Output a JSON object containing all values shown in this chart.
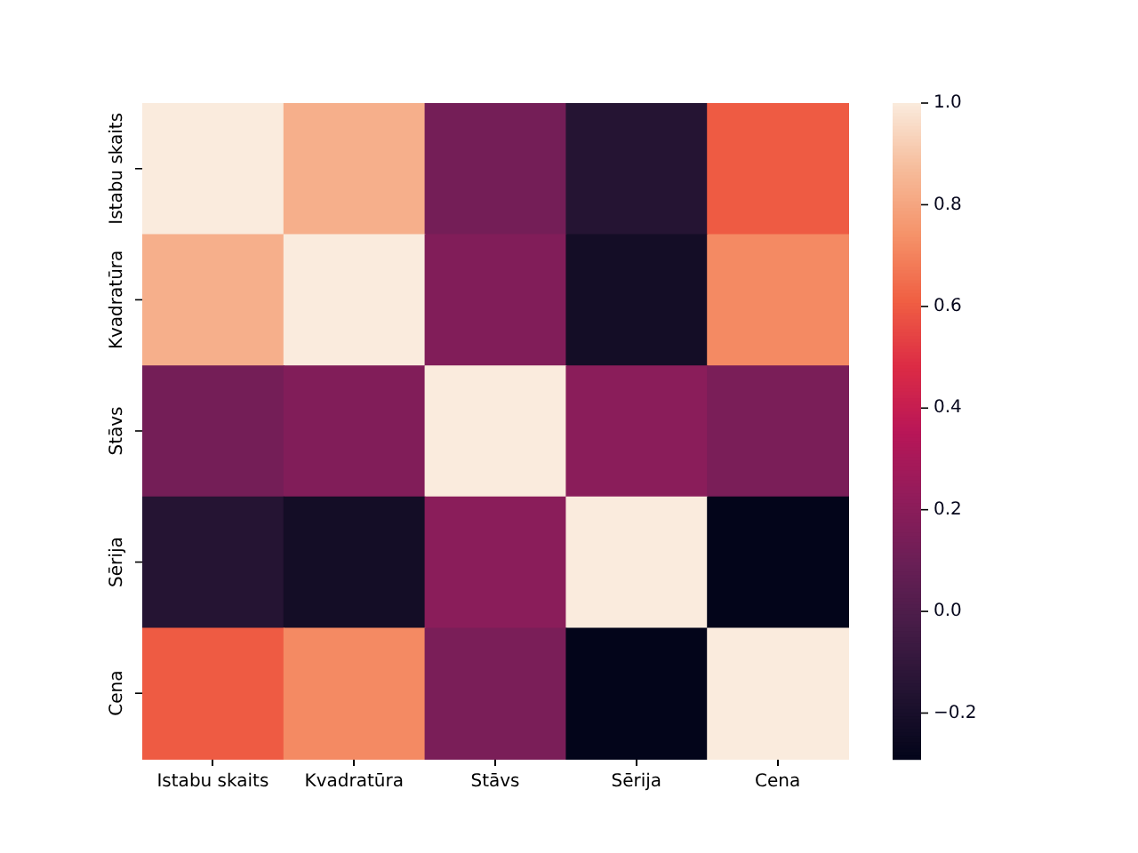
{
  "chart_data": {
    "type": "heatmap",
    "categories": [
      "Istabu skaits",
      "Kvadratūra",
      "Stāvs",
      "Sērija",
      "Cena"
    ],
    "y_categories": [
      "Istabu skaits",
      "Kvadratūra",
      "Stāvs",
      "Sērija",
      "Cena"
    ],
    "cells": [
      [
        1.0,
        0.83,
        0.13,
        -0.15,
        0.6
      ],
      [
        0.83,
        1.0,
        0.17,
        -0.22,
        0.72
      ],
      [
        0.13,
        0.17,
        1.0,
        0.2,
        0.15
      ],
      [
        -0.15,
        -0.22,
        0.2,
        1.0,
        -0.29
      ],
      [
        0.6,
        0.72,
        0.15,
        -0.29,
        1.0
      ]
    ],
    "clim": [
      -0.29,
      1.0
    ],
    "cticks": [
      -0.2,
      {
        "value": 0,
        "label": "0.0"
      },
      0.2,
      0.4,
      0.6,
      0.8,
      {
        "value": 1,
        "label": "1.0"
      }
    ]
  }
}
